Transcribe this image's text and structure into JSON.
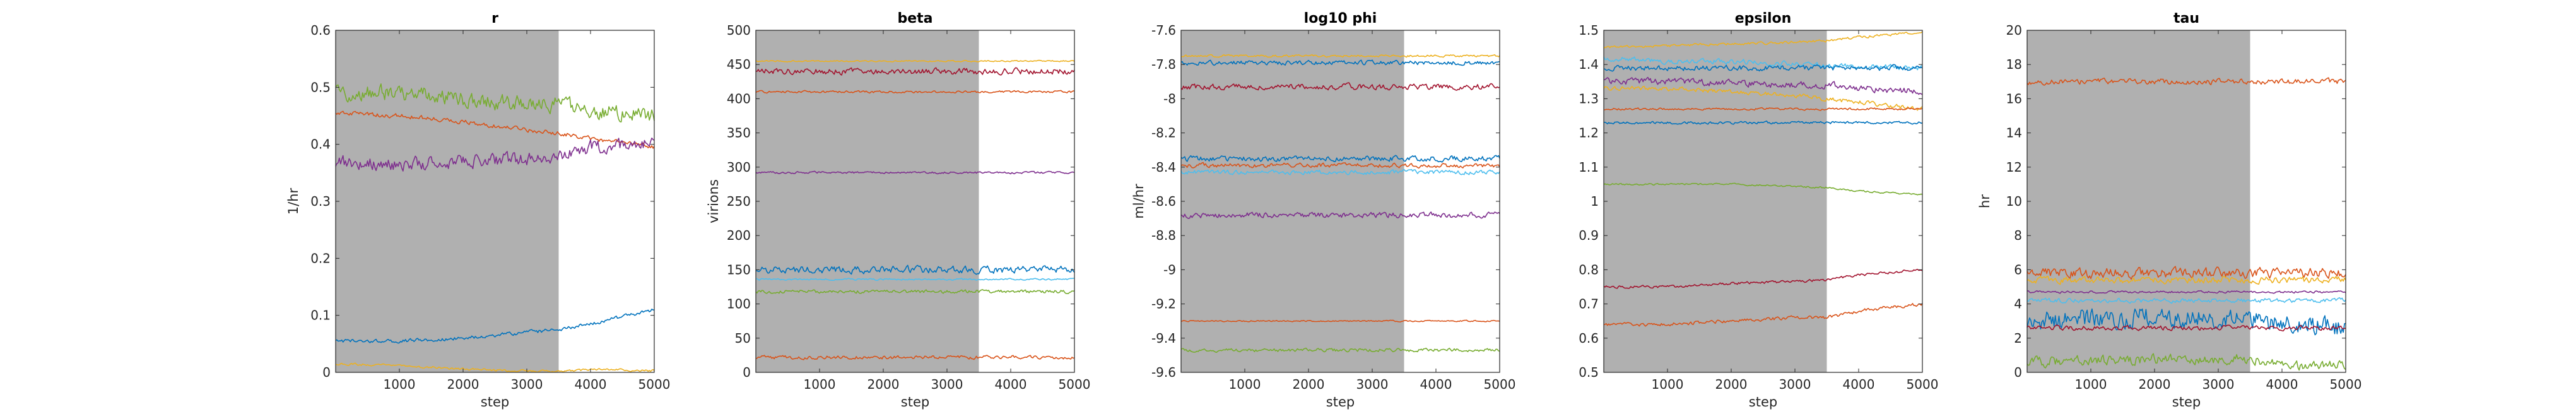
{
  "figure": {
    "background": "#ffffff",
    "burnin_shade": "#b0b0b0"
  },
  "chart_data": [
    {
      "type": "line",
      "title": "r",
      "xlabel": "step",
      "ylabel": "1/hr",
      "xlim": [
        0,
        5000
      ],
      "ylim": [
        0,
        0.6
      ],
      "xticks": [
        "1000",
        "2000",
        "3000",
        "4000",
        "5000"
      ],
      "yticks": [
        "0",
        "0.1",
        "0.2",
        "0.3",
        "0.4",
        "0.5",
        "0.6"
      ],
      "shaded_region": [
        0,
        3500
      ],
      "series": [
        {
          "color": "#77ac30",
          "x": [
            0,
            1000,
            2000,
            3000,
            3500,
            4000,
            5000
          ],
          "y": [
            0.49,
            0.49,
            0.48,
            0.47,
            0.47,
            0.46,
            0.45
          ],
          "noise": 0.022
        },
        {
          "color": "#d95319",
          "x": [
            0,
            1000,
            2000,
            3000,
            3500,
            4000,
            5000
          ],
          "y": [
            0.455,
            0.45,
            0.44,
            0.425,
            0.42,
            0.41,
            0.395
          ],
          "noise": 0.006
        },
        {
          "color": "#7e2f8e",
          "x": [
            0,
            1000,
            2000,
            3000,
            3500,
            4000,
            5000
          ],
          "y": [
            0.37,
            0.365,
            0.37,
            0.375,
            0.38,
            0.395,
            0.4
          ],
          "noise": 0.018
        },
        {
          "color": "#0072bd",
          "x": [
            0,
            1000,
            2000,
            3000,
            3500,
            4000,
            5000
          ],
          "y": [
            0.055,
            0.055,
            0.06,
            0.07,
            0.075,
            0.085,
            0.11
          ],
          "noise": 0.005
        },
        {
          "color": "#edb120",
          "x": [
            0,
            1000,
            2000,
            2500,
            3000,
            3500,
            4000,
            5000
          ],
          "y": [
            0.015,
            0.012,
            0.006,
            0.004,
            0.002,
            0.002,
            0.005,
            0.003
          ],
          "noise": 0.003
        }
      ]
    },
    {
      "type": "line",
      "title": "beta",
      "xlabel": "step",
      "ylabel": "virions",
      "xlim": [
        0,
        5000
      ],
      "ylim": [
        0,
        500
      ],
      "xticks": [
        "1000",
        "2000",
        "3000",
        "4000",
        "5000"
      ],
      "yticks": [
        "0",
        "50",
        "100",
        "150",
        "200",
        "250",
        "300",
        "350",
        "400",
        "450",
        "500"
      ],
      "shaded_region": [
        0,
        3500
      ],
      "series": [
        {
          "color": "#edb120",
          "x": [
            0,
            5000
          ],
          "y": [
            455,
            455
          ],
          "noise": 1.5
        },
        {
          "color": "#a2142f",
          "x": [
            0,
            5000
          ],
          "y": [
            440,
            440
          ],
          "noise": 7
        },
        {
          "color": "#d95319",
          "x": [
            0,
            5000
          ],
          "y": [
            410,
            410
          ],
          "noise": 2.5
        },
        {
          "color": "#7e2f8e",
          "x": [
            0,
            5000
          ],
          "y": [
            292,
            292
          ],
          "noise": 2.5
        },
        {
          "color": "#0072bd",
          "x": [
            0,
            5000
          ],
          "y": [
            150,
            150
          ],
          "noise": 8
        },
        {
          "color": "#4dbeee",
          "x": [
            0,
            5000
          ],
          "y": [
            136,
            136
          ],
          "noise": 2
        },
        {
          "color": "#77ac30",
          "x": [
            0,
            5000
          ],
          "y": [
            118,
            118
          ],
          "noise": 4
        },
        {
          "color": "#d95319",
          "x": [
            0,
            5000
          ],
          "y": [
            22,
            22
          ],
          "noise": 4
        }
      ]
    },
    {
      "type": "line",
      "title": "log10 phi",
      "xlabel": "step",
      "ylabel": "ml/hr",
      "xlim": [
        0,
        5000
      ],
      "ylim": [
        -9.6,
        -7.6
      ],
      "xticks": [
        "1000",
        "2000",
        "3000",
        "4000",
        "5000"
      ],
      "yticks": [
        "-9.6",
        "-9.4",
        "-9.2",
        "-9",
        "-8.8",
        "-8.6",
        "-8.4",
        "-8.2",
        "-8",
        "-7.8",
        "-7.6"
      ],
      "shaded_region": [
        0,
        3500
      ],
      "series": [
        {
          "color": "#edb120",
          "x": [
            0,
            5000
          ],
          "y": [
            -7.75,
            -7.75
          ],
          "noise": 0.01
        },
        {
          "color": "#0072bd",
          "x": [
            0,
            5000
          ],
          "y": [
            -7.79,
            -7.79
          ],
          "noise": 0.02
        },
        {
          "color": "#a2142f",
          "x": [
            0,
            5000
          ],
          "y": [
            -7.93,
            -7.93
          ],
          "noise": 0.025
        },
        {
          "color": "#0072bd",
          "x": [
            0,
            5000
          ],
          "y": [
            -8.35,
            -8.35
          ],
          "noise": 0.025
        },
        {
          "color": "#d95319",
          "x": [
            0,
            5000
          ],
          "y": [
            -8.39,
            -8.39
          ],
          "noise": 0.02
        },
        {
          "color": "#4dbeee",
          "x": [
            0,
            5000
          ],
          "y": [
            -8.43,
            -8.43
          ],
          "noise": 0.02
        },
        {
          "color": "#7e2f8e",
          "x": [
            0,
            5000
          ],
          "y": [
            -8.68,
            -8.68
          ],
          "noise": 0.025
        },
        {
          "color": "#d95319",
          "x": [
            0,
            5000
          ],
          "y": [
            -9.3,
            -9.3
          ],
          "noise": 0.006
        },
        {
          "color": "#77ac30",
          "x": [
            0,
            5000
          ],
          "y": [
            -9.47,
            -9.47
          ],
          "noise": 0.015
        }
      ]
    },
    {
      "type": "line",
      "title": "epsilon",
      "xlabel": "step",
      "ylabel": "",
      "xlim": [
        0,
        5000
      ],
      "ylim": [
        0.5,
        1.5
      ],
      "xticks": [
        "1000",
        "2000",
        "3000",
        "4000",
        "5000"
      ],
      "yticks": [
        "0.5",
        "0.6",
        "0.7",
        "0.8",
        "0.9",
        "1",
        "1.1",
        "1.2",
        "1.3",
        "1.4",
        "1.5"
      ],
      "shaded_region": [
        0,
        3500
      ],
      "series": [
        {
          "color": "#edb120",
          "x": [
            0,
            1000,
            2000,
            3000,
            3500,
            4000,
            5000
          ],
          "y": [
            1.45,
            1.455,
            1.46,
            1.465,
            1.47,
            1.48,
            1.495
          ],
          "noise": 0.006
        },
        {
          "color": "#4dbeee",
          "x": [
            0,
            1000,
            2000,
            3000,
            3500,
            4000,
            5000
          ],
          "y": [
            1.42,
            1.41,
            1.41,
            1.4,
            1.4,
            1.395,
            1.39
          ],
          "noise": 0.012
        },
        {
          "color": "#0072bd",
          "x": [
            0,
            5000
          ],
          "y": [
            1.39,
            1.39
          ],
          "noise": 0.012
        },
        {
          "color": "#7e2f8e",
          "x": [
            0,
            1000,
            2000,
            3000,
            3500,
            4000,
            5000
          ],
          "y": [
            1.35,
            1.35,
            1.345,
            1.34,
            1.34,
            1.33,
            1.32
          ],
          "noise": 0.015
        },
        {
          "color": "#edb120",
          "x": [
            0,
            1000,
            2000,
            3000,
            3500,
            4000,
            5000
          ],
          "y": [
            1.33,
            1.33,
            1.32,
            1.31,
            1.3,
            1.29,
            1.27
          ],
          "noise": 0.01
        },
        {
          "color": "#d95319",
          "x": [
            0,
            5000
          ],
          "y": [
            1.27,
            1.27
          ],
          "noise": 0.005
        },
        {
          "color": "#0072bd",
          "x": [
            0,
            5000
          ],
          "y": [
            1.23,
            1.23
          ],
          "noise": 0.006
        },
        {
          "color": "#77ac30",
          "x": [
            0,
            2000,
            3500,
            4000,
            5000
          ],
          "y": [
            1.05,
            1.05,
            1.04,
            1.03,
            1.02
          ],
          "noise": 0.004
        },
        {
          "color": "#a2142f",
          "x": [
            0,
            1000,
            2000,
            3000,
            3500,
            4000,
            5000
          ],
          "y": [
            0.75,
            0.75,
            0.76,
            0.765,
            0.77,
            0.785,
            0.8
          ],
          "noise": 0.006
        },
        {
          "color": "#d95319",
          "x": [
            0,
            1000,
            2000,
            3000,
            3500,
            4000,
            5000
          ],
          "y": [
            0.64,
            0.64,
            0.65,
            0.66,
            0.66,
            0.68,
            0.7
          ],
          "noise": 0.008
        }
      ]
    },
    {
      "type": "line",
      "title": "tau",
      "xlabel": "step",
      "ylabel": "hr",
      "xlim": [
        0,
        5000
      ],
      "ylim": [
        0,
        20
      ],
      "xticks": [
        "1000",
        "2000",
        "3000",
        "4000",
        "5000"
      ],
      "yticks": [
        "0",
        "2",
        "4",
        "6",
        "8",
        "10",
        "12",
        "14",
        "16",
        "18",
        "20"
      ],
      "shaded_region": [
        0,
        3500
      ],
      "series": [
        {
          "color": "#d95319",
          "x": [
            0,
            5000
          ],
          "y": [
            17,
            17
          ],
          "noise": 0.25
        },
        {
          "color": "#d95319",
          "x": [
            0,
            5000
          ],
          "y": [
            5.8,
            5.8
          ],
          "noise": 0.45
        },
        {
          "color": "#edb120",
          "x": [
            0,
            5000
          ],
          "y": [
            5.4,
            5.4
          ],
          "noise": 0.3
        },
        {
          "color": "#7e2f8e",
          "x": [
            0,
            5000
          ],
          "y": [
            4.7,
            4.7
          ],
          "noise": 0.1
        },
        {
          "color": "#4dbeee",
          "x": [
            0,
            5000
          ],
          "y": [
            4.2,
            4.2
          ],
          "noise": 0.2
        },
        {
          "color": "#0072bd",
          "x": [
            0,
            2000,
            3500,
            4000,
            5000
          ],
          "y": [
            3.0,
            3.3,
            3.0,
            2.8,
            2.6
          ],
          "noise": 0.9
        },
        {
          "color": "#a2142f",
          "x": [
            0,
            5000
          ],
          "y": [
            2.6,
            2.6
          ],
          "noise": 0.2
        },
        {
          "color": "#77ac30",
          "x": [
            0,
            2500,
            3500,
            4000,
            5000
          ],
          "y": [
            0.6,
            0.8,
            0.8,
            0.4,
            0.4
          ],
          "noise": 0.45
        }
      ]
    }
  ]
}
